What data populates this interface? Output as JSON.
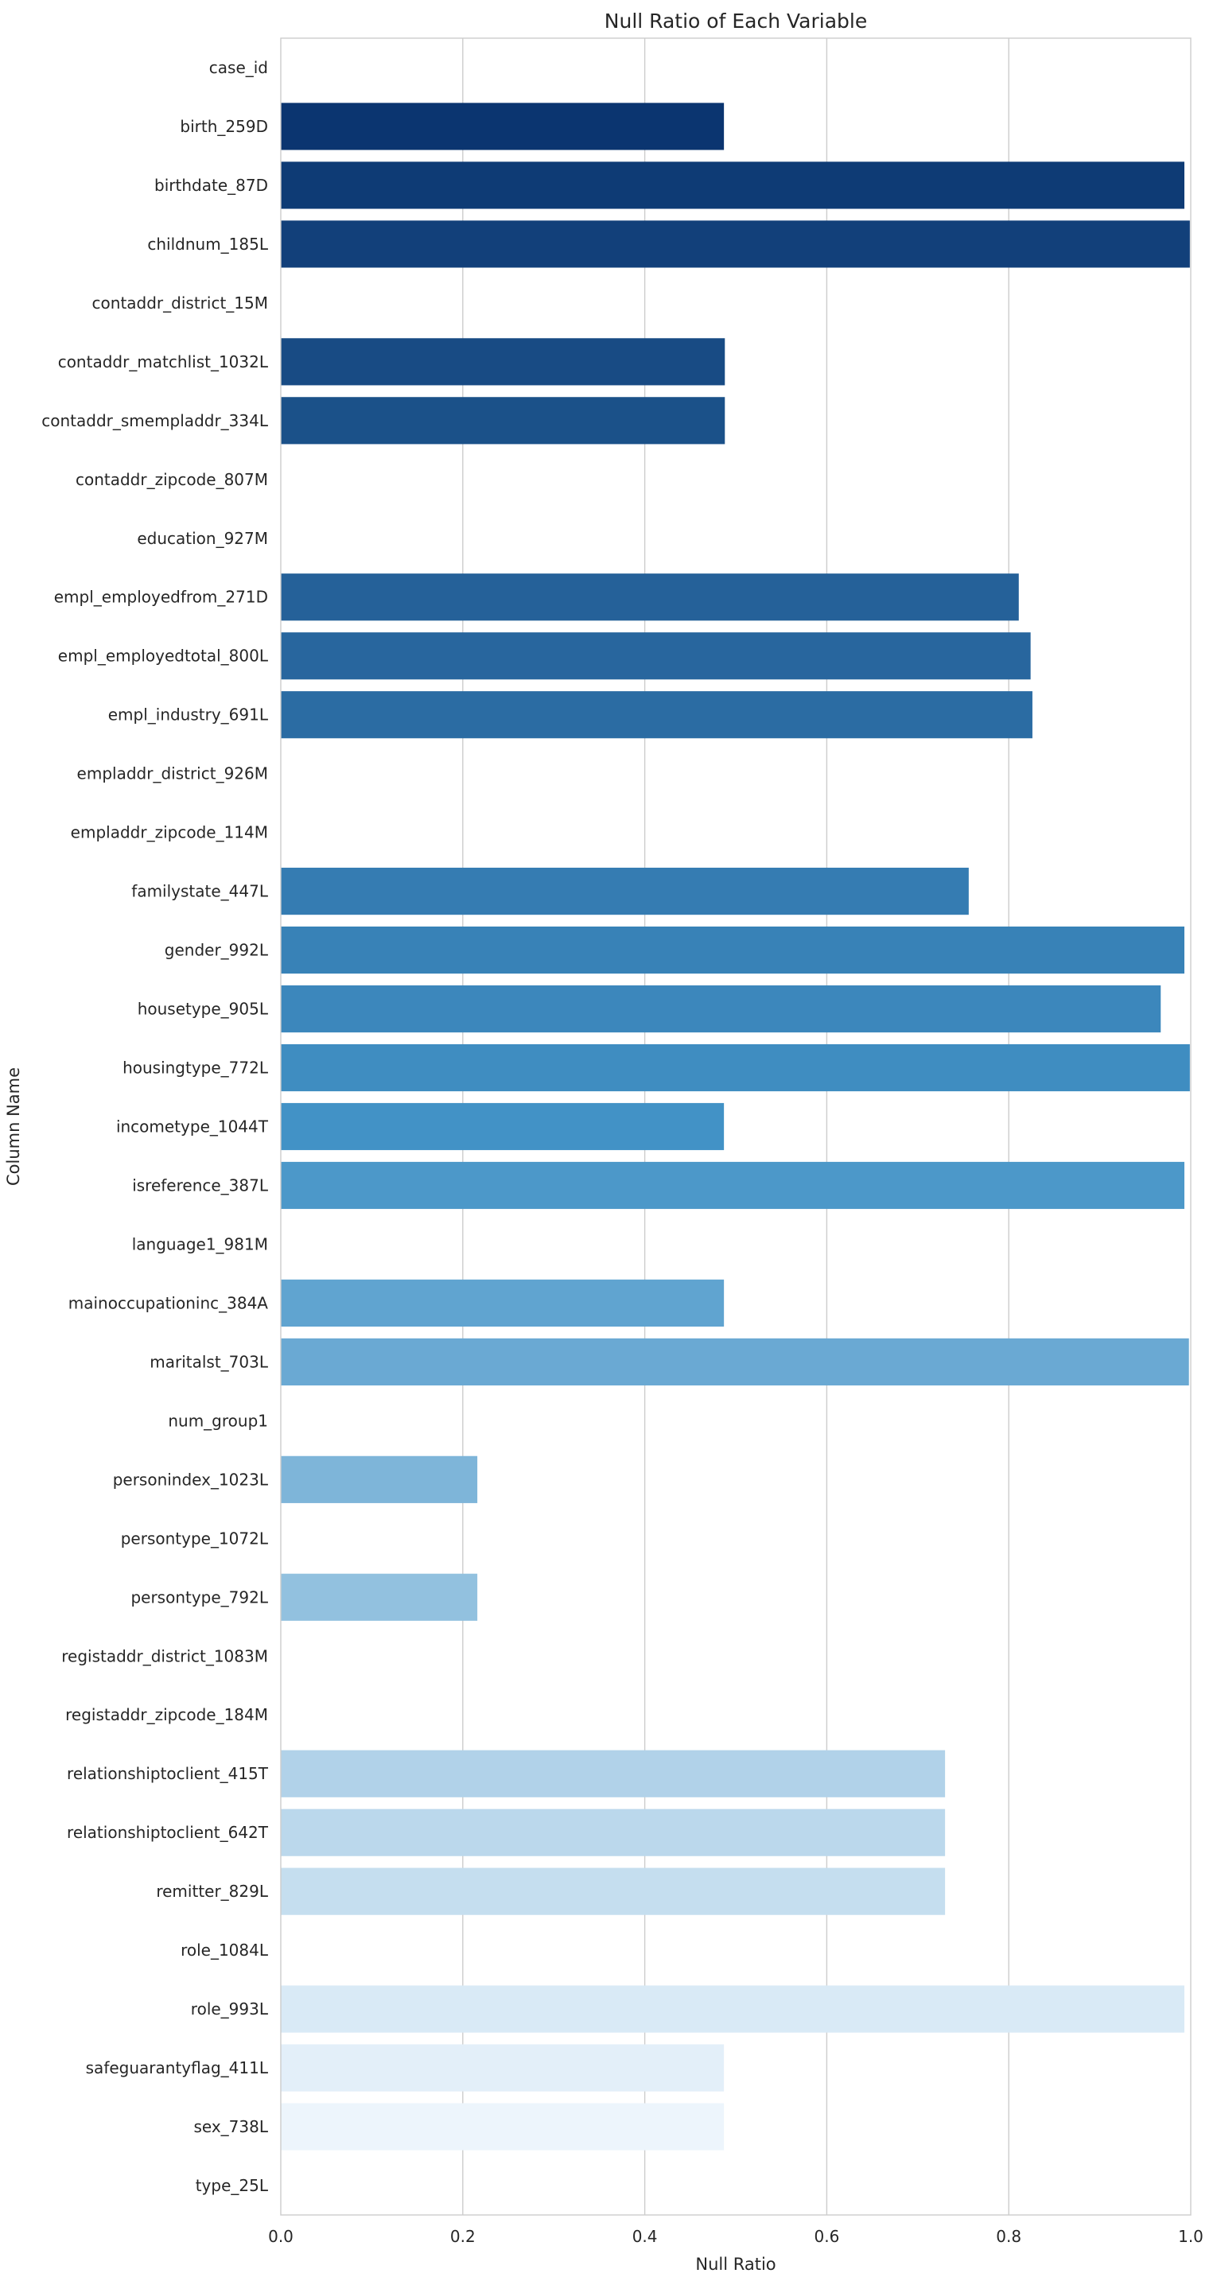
{
  "chart_data": {
    "type": "bar",
    "orientation": "horizontal",
    "title": "Null Ratio of Each Variable",
    "xlabel": "Null Ratio",
    "ylabel": "Column Name",
    "xlim": [
      0,
      1.0
    ],
    "xticks": [
      0,
      0.2,
      0.4,
      0.6,
      0.8,
      1.0
    ],
    "xtick_labels": [
      "0.0",
      "0.2",
      "0.4",
      "0.6",
      "0.8",
      "1.0"
    ],
    "grid": "vertical",
    "palette": "Blues_r",
    "palette_dark": "#08306b",
    "palette_light": "#f7fbff",
    "categories": [
      "case_id",
      "birth_259D",
      "birthdate_87D",
      "childnum_185L",
      "contaddr_district_15M",
      "contaddr_matchlist_1032L",
      "contaddr_smempladdr_334L",
      "contaddr_zipcode_807M",
      "education_927M",
      "empl_employedfrom_271D",
      "empl_employedtotal_800L",
      "empl_industry_691L",
      "empladdr_district_926M",
      "empladdr_zipcode_114M",
      "familystate_447L",
      "gender_992L",
      "housetype_905L",
      "housingtype_772L",
      "incometype_1044T",
      "isreference_387L",
      "language1_981M",
      "mainoccupationinc_384A",
      "maritalst_703L",
      "num_group1",
      "personindex_1023L",
      "persontype_1072L",
      "persontype_792L",
      "registaddr_district_1083M",
      "registaddr_zipcode_184M",
      "relationshiptoclient_415T",
      "relationshiptoclient_642T",
      "remitter_829L",
      "role_1084L",
      "role_993L",
      "safeguarantyflag_411L",
      "sex_738L",
      "type_25L"
    ],
    "values": [
      0.0,
      0.487,
      0.993,
      0.999,
      0.0,
      0.488,
      0.488,
      0.0,
      0.0,
      0.811,
      0.824,
      0.826,
      0.0,
      0.0,
      0.756,
      0.993,
      0.967,
      0.999,
      0.487,
      0.993,
      0.0,
      0.487,
      0.998,
      0.0,
      0.216,
      0.0,
      0.216,
      0.0,
      0.0,
      0.73,
      0.73,
      0.73,
      0.0,
      0.993,
      0.487,
      0.487,
      0.0
    ]
  }
}
